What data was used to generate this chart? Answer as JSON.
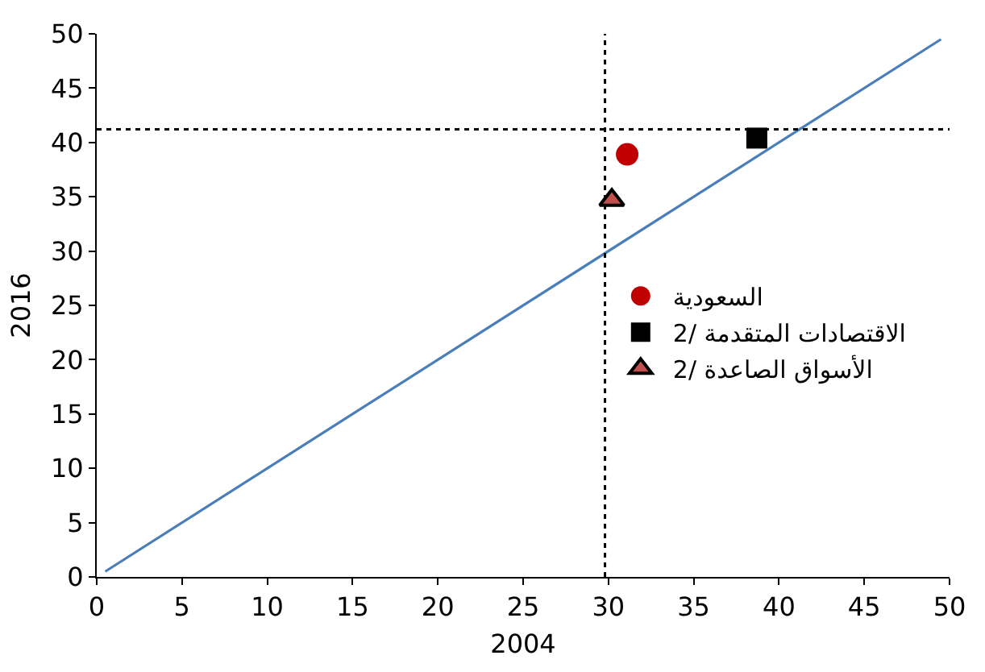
{
  "chart_data": {
    "type": "scatter",
    "xlabel": "2004",
    "ylabel": "2016",
    "xlim": [
      0,
      50
    ],
    "xticks": [
      0,
      5,
      10,
      15,
      20,
      25,
      30,
      35,
      40,
      45,
      50
    ],
    "ylim": [
      0,
      50
    ],
    "yticks": [
      0,
      5,
      10,
      15,
      20,
      25,
      30,
      35,
      40,
      45,
      50
    ],
    "legend": "right",
    "series": [
      {
        "name": "السعودية",
        "color": "#c00000",
        "marker": "circle",
        "x": [
          31.1
        ],
        "values": [
          38.9
        ]
      },
      {
        "name": "الاقتصادات المتقدمة /2",
        "color": "#000000",
        "marker": "square",
        "x": [
          38.7
        ],
        "values": [
          40.4
        ]
      },
      {
        "name": "الأسواق الصاعدة /2",
        "color": "#c0504d",
        "marker": "triangle",
        "x": [
          30.2
        ],
        "values": [
          34.7
        ]
      },
      {
        "type": "line",
        "color": "#4a7ebb",
        "marker": "none",
        "line_style": "solid",
        "x": [
          0.5,
          49.5
        ],
        "values": [
          0.5,
          49.5
        ]
      }
    ],
    "ref_lines": [
      {
        "axis": "x",
        "value": 29.8,
        "color": "#000000",
        "line_style": "dotted"
      },
      {
        "axis": "y",
        "value": 41.2,
        "color": "#000000",
        "line_style": "dotted"
      }
    ]
  }
}
